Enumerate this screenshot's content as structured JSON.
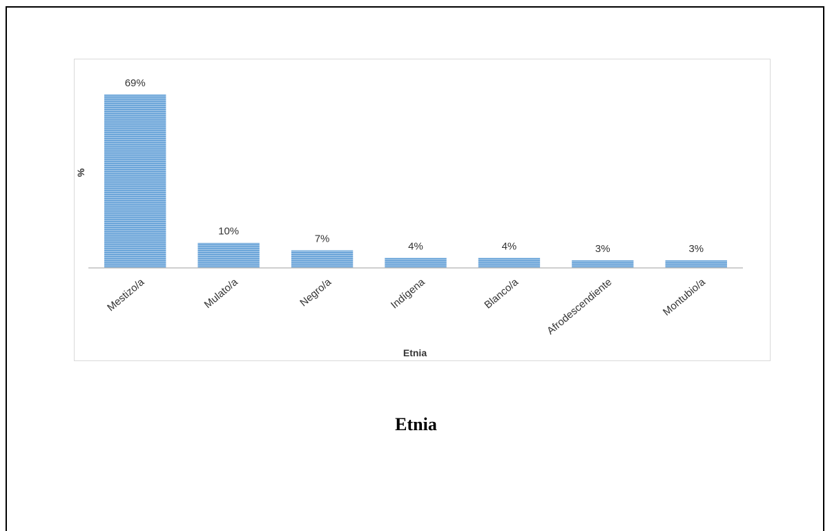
{
  "chart_data": {
    "type": "bar",
    "categories": [
      "Mestizo/a",
      "Mulato/a",
      "Negro/a",
      "Indígena",
      "Blanco/a",
      "Afrodescendiente",
      "Montubio/a"
    ],
    "values": [
      69,
      10,
      7,
      4,
      4,
      3,
      3
    ],
    "data_labels": [
      "69%",
      "10%",
      "7%",
      "4%",
      "4%",
      "3%",
      "3%"
    ],
    "title": "",
    "xlabel": "Etnia",
    "ylabel": "%",
    "ylim": [
      0,
      72
    ],
    "grid": false,
    "legend": "none",
    "bar_color": "#5b9bd5",
    "bar_pattern": "horizontal-stripes"
  },
  "caption": "Etnia"
}
